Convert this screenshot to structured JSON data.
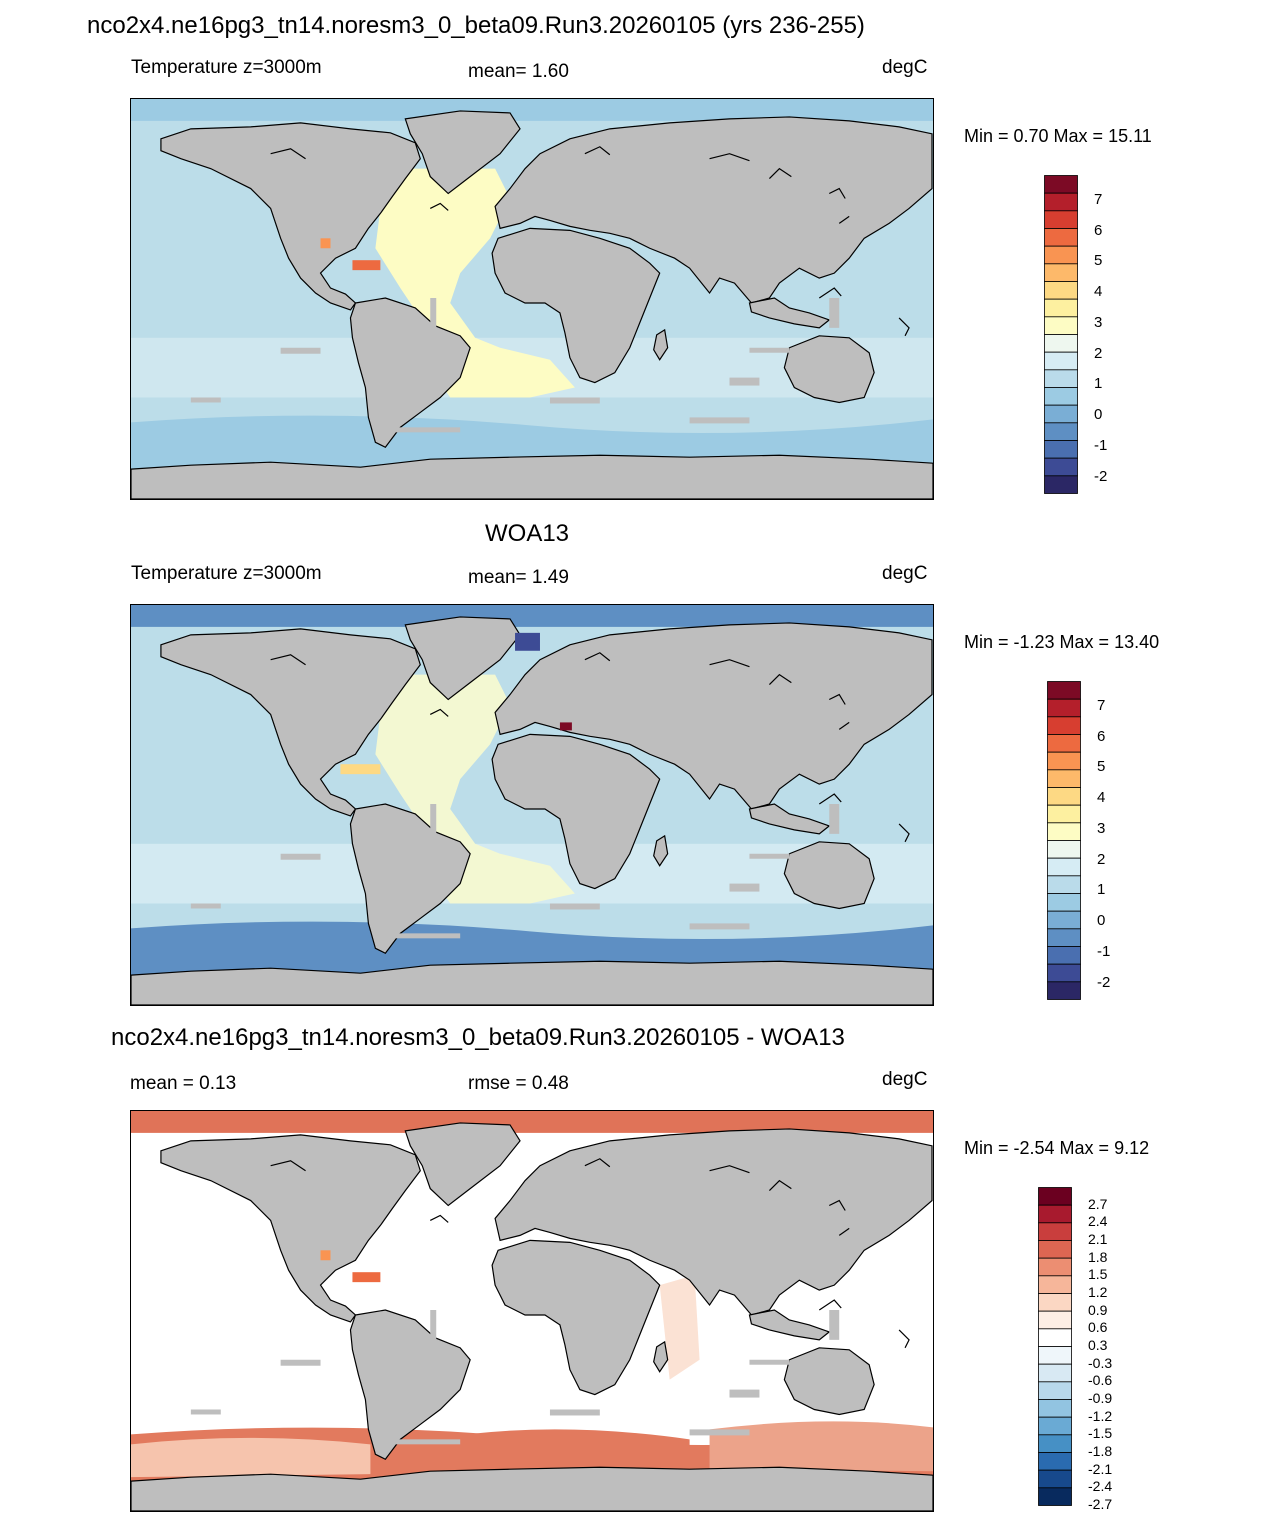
{
  "panels": [
    {
      "title": "nco2x4.ne16pg3_tn14.noresm3_0_beta09.Run3.20260105 (yrs 236-255)",
      "left_label": "Temperature z=3000m",
      "center_label": "mean=   1.60",
      "units": "degC",
      "minmax": "Min =   0.70 Max =  15.11",
      "colorbar": {
        "colors": [
          "#2b2765",
          "#3d4b95",
          "#4a6fb0",
          "#5e8fc3",
          "#7aaed5",
          "#9ccbe3",
          "#badbea",
          "#d6ecf4",
          "#eef7ef",
          "#fdfcc4",
          "#fdf0a0",
          "#fdd984",
          "#fdb96a",
          "#f99452",
          "#ed6a40",
          "#d73e30",
          "#b41f2b",
          "#7c0a25"
        ],
        "labels": [
          "7",
          "6",
          "5",
          "4",
          "3",
          "2",
          "1",
          "0",
          "-1",
          "-2"
        ]
      },
      "map_style": "model",
      "fill_colors": {
        "deep_ocean": "#bcdde9",
        "mid_ocean": "#cfe7ef",
        "atlantic": "#fdfcc4",
        "southern": "#9ccbe3",
        "land": "#bebebe",
        "arctic": "#9ccbe3"
      }
    },
    {
      "title": "WOA13",
      "left_label": "Temperature z=3000m",
      "center_label": "mean=   1.49",
      "units": "degC",
      "minmax": "Min =  -1.23 Max =  13.40",
      "colorbar": {
        "colors": [
          "#2b2765",
          "#3d4b95",
          "#4a6fb0",
          "#5e8fc3",
          "#7aaed5",
          "#9ccbe3",
          "#badbea",
          "#d6ecf4",
          "#eef7ef",
          "#fdfcc4",
          "#fdf0a0",
          "#fdd984",
          "#fdb96a",
          "#f99452",
          "#ed6a40",
          "#d73e30",
          "#b41f2b",
          "#7c0a25"
        ],
        "labels": [
          "7",
          "6",
          "5",
          "4",
          "3",
          "2",
          "1",
          "0",
          "-1",
          "-2"
        ]
      },
      "map_style": "obs",
      "fill_colors": {
        "deep_ocean": "#bcdde9",
        "mid_ocean": "#d3eaf2",
        "atlantic": "#f3f8d2",
        "southern": "#5e8fc3",
        "land": "#bebebe",
        "arctic": "#5e8fc3"
      }
    },
    {
      "title": "nco2x4.ne16pg3_tn14.noresm3_0_beta09.Run3.20260105 - WOA13",
      "left_label": "mean =   0.13",
      "center_label": "rmse =   0.48",
      "units": "degC",
      "minmax": "Min =  -2.54 Max =   9.12",
      "colorbar": {
        "colors": [
          "#082a5e",
          "#17498c",
          "#2a6bb0",
          "#4690c5",
          "#6aaad4",
          "#92c4e1",
          "#b8d8eb",
          "#d8e9f3",
          "#eff6fa",
          "#ffffff",
          "#fdeee5",
          "#fbd7c3",
          "#f6b69a",
          "#ec8e72",
          "#dd6652",
          "#c93e3d",
          "#a81a2e",
          "#6b0020"
        ],
        "labels": [
          "2.7",
          "2.4",
          "2.1",
          "1.8",
          "1.5",
          "1.2",
          "0.9",
          "0.6",
          "0.3",
          "-0.3",
          "-0.6",
          "-0.9",
          "-1.2",
          "-1.5",
          "-1.8",
          "-2.1",
          "-2.4",
          "-2.7"
        ]
      },
      "map_style": "diff",
      "fill_colors": {
        "deep_ocean": "#ffffff",
        "mid_ocean": "#ffffff",
        "atlantic": "#ffffff",
        "southern": "#e27a5e",
        "land": "#bebebe",
        "arctic": "#e07358"
      }
    }
  ]
}
